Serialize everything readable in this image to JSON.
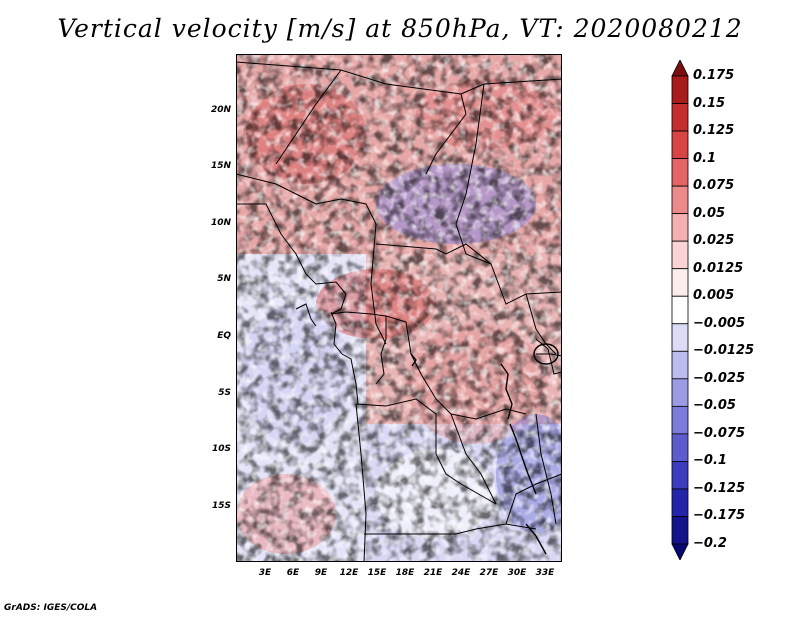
{
  "title": "Vertical velocity [m/s] at 850hPa, VT: 2020080212",
  "footer": "GrADS: IGES/COLA",
  "y_axis_labels": [
    "20N",
    "15N",
    "10N",
    "5N",
    "EQ",
    "5S",
    "10S",
    "15S"
  ],
  "x_axis_labels": [
    "3E",
    "6E",
    "9E",
    "12E",
    "15E",
    "18E",
    "21E",
    "24E",
    "27E",
    "30E",
    "33E"
  ],
  "colorbar": {
    "labels": [
      "0.175",
      "0.15",
      "0.125",
      "0.1",
      "0.075",
      "0.05",
      "0.025",
      "0.0125",
      "0.005",
      "−0.005",
      "−0.0125",
      "−0.025",
      "−0.05",
      "−0.075",
      "−0.1",
      "−0.125",
      "−0.175",
      "−0.2"
    ],
    "colors": [
      "#7a0f0f",
      "#a81c1c",
      "#c42e2e",
      "#d94444",
      "#e46565",
      "#ec8a8a",
      "#f4b0b0",
      "#fad4d4",
      "#fdeeee",
      "#ffffff",
      "#dcdcf6",
      "#bcbcee",
      "#9c9ce4",
      "#7c7cda",
      "#5c5cce",
      "#3c3cbe",
      "#2424aa",
      "#13138c",
      "#080870"
    ]
  },
  "colors": {
    "warm": "#e24a4a",
    "cool": "#6a6ad8",
    "border": "#000000"
  }
}
